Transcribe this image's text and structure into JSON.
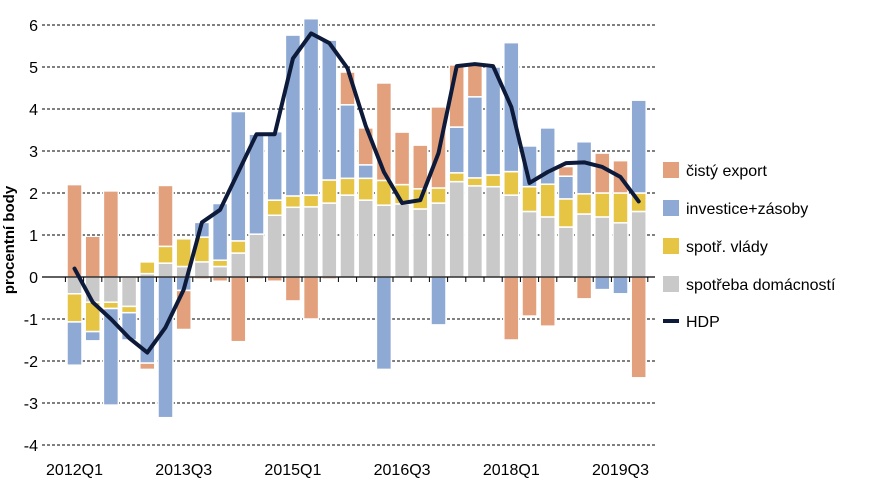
{
  "chart_data": {
    "type": "bar",
    "stacked": true,
    "title": "",
    "xlabel": "",
    "ylabel": "procentní body",
    "ylim": [
      -4,
      6
    ],
    "yticks": [
      6,
      5,
      4,
      3,
      2,
      1,
      0,
      -1,
      -2,
      -3,
      -4
    ],
    "grid": true,
    "legend_position": "right",
    "categories": [
      "2012Q1",
      "2012Q2",
      "2012Q3",
      "2012Q4",
      "2013Q1",
      "2013Q2",
      "2013Q3",
      "2013Q4",
      "2014Q1",
      "2014Q2",
      "2014Q3",
      "2014Q4",
      "2015Q1",
      "2015Q2",
      "2015Q3",
      "2015Q4",
      "2016Q1",
      "2016Q2",
      "2016Q3",
      "2016Q4",
      "2017Q1",
      "2017Q2",
      "2017Q3",
      "2017Q4",
      "2018Q1",
      "2018Q2",
      "2018Q3",
      "2018Q4",
      "2019Q1",
      "2019Q2",
      "2019Q3",
      "2019Q4"
    ],
    "xtick_labels": [
      "2012Q1",
      "2013Q3",
      "2015Q1",
      "2016Q3",
      "2018Q1",
      "2019Q3"
    ],
    "series": [
      {
        "name": "spotřeba domácností",
        "kind": "bar",
        "color": "#c9c9c9",
        "values": [
          -0.4,
          -0.6,
          -0.6,
          -0.7,
          0.08,
          0.33,
          0.25,
          0.36,
          0.25,
          0.57,
          1.02,
          1.47,
          1.66,
          1.67,
          1.76,
          1.95,
          1.83,
          1.71,
          1.74,
          1.62,
          1.76,
          2.27,
          2.17,
          2.15,
          1.95,
          1.56,
          1.43,
          1.19,
          1.5,
          1.43,
          1.29,
          1.56
        ]
      },
      {
        "name": "spotř. vlády",
        "kind": "bar",
        "color": "#e6c545",
        "values": [
          -0.67,
          -0.7,
          -0.15,
          -0.15,
          0.28,
          0.4,
          0.66,
          0.59,
          0.15,
          0.29,
          0.0,
          0.36,
          0.27,
          0.28,
          0.55,
          0.4,
          0.52,
          0.59,
          0.46,
          0.48,
          0.36,
          0.21,
          0.19,
          0.28,
          0.56,
          0.59,
          0.78,
          0.67,
          0.48,
          0.57,
          0.71,
          0.44
        ]
      },
      {
        "name": "investice+zásoby",
        "kind": "bar",
        "color": "#8eaad4",
        "values": [
          -1.03,
          -0.22,
          -2.3,
          -0.65,
          -2.05,
          -3.35,
          -0.32,
          0.35,
          1.35,
          3.08,
          2.38,
          1.63,
          3.83,
          4.2,
          3.33,
          1.75,
          0.32,
          -2.2,
          0.0,
          0.0,
          -1.14,
          1.09,
          1.93,
          2.57,
          3.07,
          0.97,
          1.34,
          0.54,
          1.24,
          -0.3,
          -0.4,
          2.21
        ]
      },
      {
        "name": "čistý export",
        "kind": "bar",
        "color": "#e3a07c",
        "values": [
          2.2,
          0.97,
          2.05,
          0.02,
          -0.15,
          1.45,
          -0.93,
          -0.05,
          -0.1,
          -1.54,
          -0.05,
          -0.1,
          -0.57,
          -1.0,
          -0.05,
          0.78,
          0.88,
          2.32,
          1.25,
          1.04,
          1.93,
          1.48,
          0.76,
          0.0,
          -1.5,
          -0.93,
          -1.17,
          0.23,
          -0.52,
          0.95,
          0.77,
          -2.4
        ]
      },
      {
        "name": "HDP",
        "kind": "line",
        "color": "#0d1a3a",
        "values": [
          0.2,
          -0.6,
          -1.0,
          -1.45,
          -1.8,
          -1.2,
          -0.3,
          1.3,
          1.6,
          2.5,
          3.4,
          3.4,
          5.2,
          5.8,
          5.57,
          4.97,
          3.6,
          2.5,
          1.76,
          1.83,
          2.95,
          5.02,
          5.07,
          5.02,
          4.05,
          2.24,
          2.5,
          2.71,
          2.73,
          2.62,
          2.38,
          1.8
        ]
      }
    ]
  }
}
